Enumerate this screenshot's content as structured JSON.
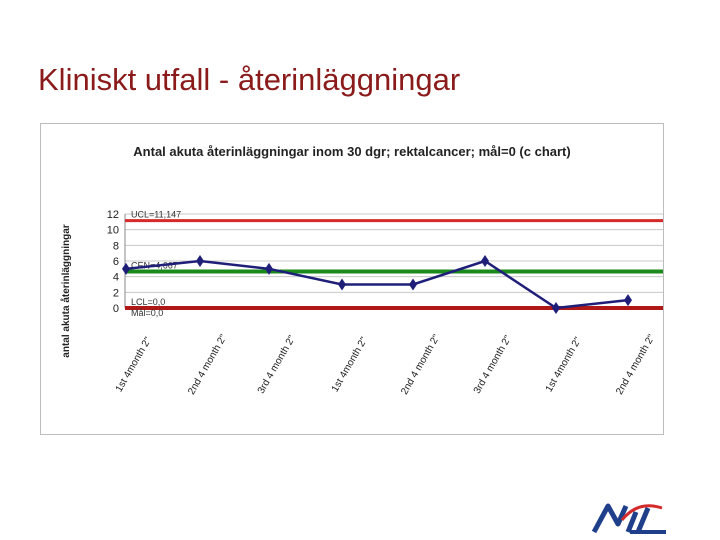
{
  "slide": {
    "title": "Kliniskt utfall - återinläggningar"
  },
  "colors": {
    "title": "#8b1a1a",
    "series": "#1f1f7a",
    "ucl": "#d42a2a",
    "center": "#1a8a1a",
    "lcl": "#b01818",
    "grid": "#c8c8c8",
    "logo": "#1f3f8a",
    "logo_accent": "#d42a2a"
  },
  "chart_data": {
    "type": "line",
    "title": "Antal akuta återinläggningar inom 30 dgr; rektalcancer; mål=0  (c chart)",
    "ylabel": "antal akuta återinläggningar",
    "xlabel": "",
    "ylim": [
      0,
      12
    ],
    "yticks": [
      "0",
      "2",
      "4",
      "6",
      "8",
      "10",
      "12"
    ],
    "categories": [
      "1st 4month 2\"",
      "2nd 4 month 2\"",
      "3rd 4 month 2\"",
      "1st 4month 2\"",
      "2nd 4 month 2\"",
      "3rd 4 month 2\"",
      "1st 4month 2\"",
      "2nd 4 month 2\""
    ],
    "series": [
      {
        "values": [
          5,
          6,
          5,
          3,
          3,
          6,
          0,
          1
        ]
      }
    ],
    "control_lines": [
      {
        "label": "UCL=11,147",
        "value": 11.147
      },
      {
        "label": "CEN=4,667",
        "value": 4.667
      },
      {
        "label": "LCL=0,0",
        "value": 0
      },
      {
        "label": "Mål=0,0",
        "value": 0
      }
    ],
    "grid": true,
    "legend": "none"
  }
}
